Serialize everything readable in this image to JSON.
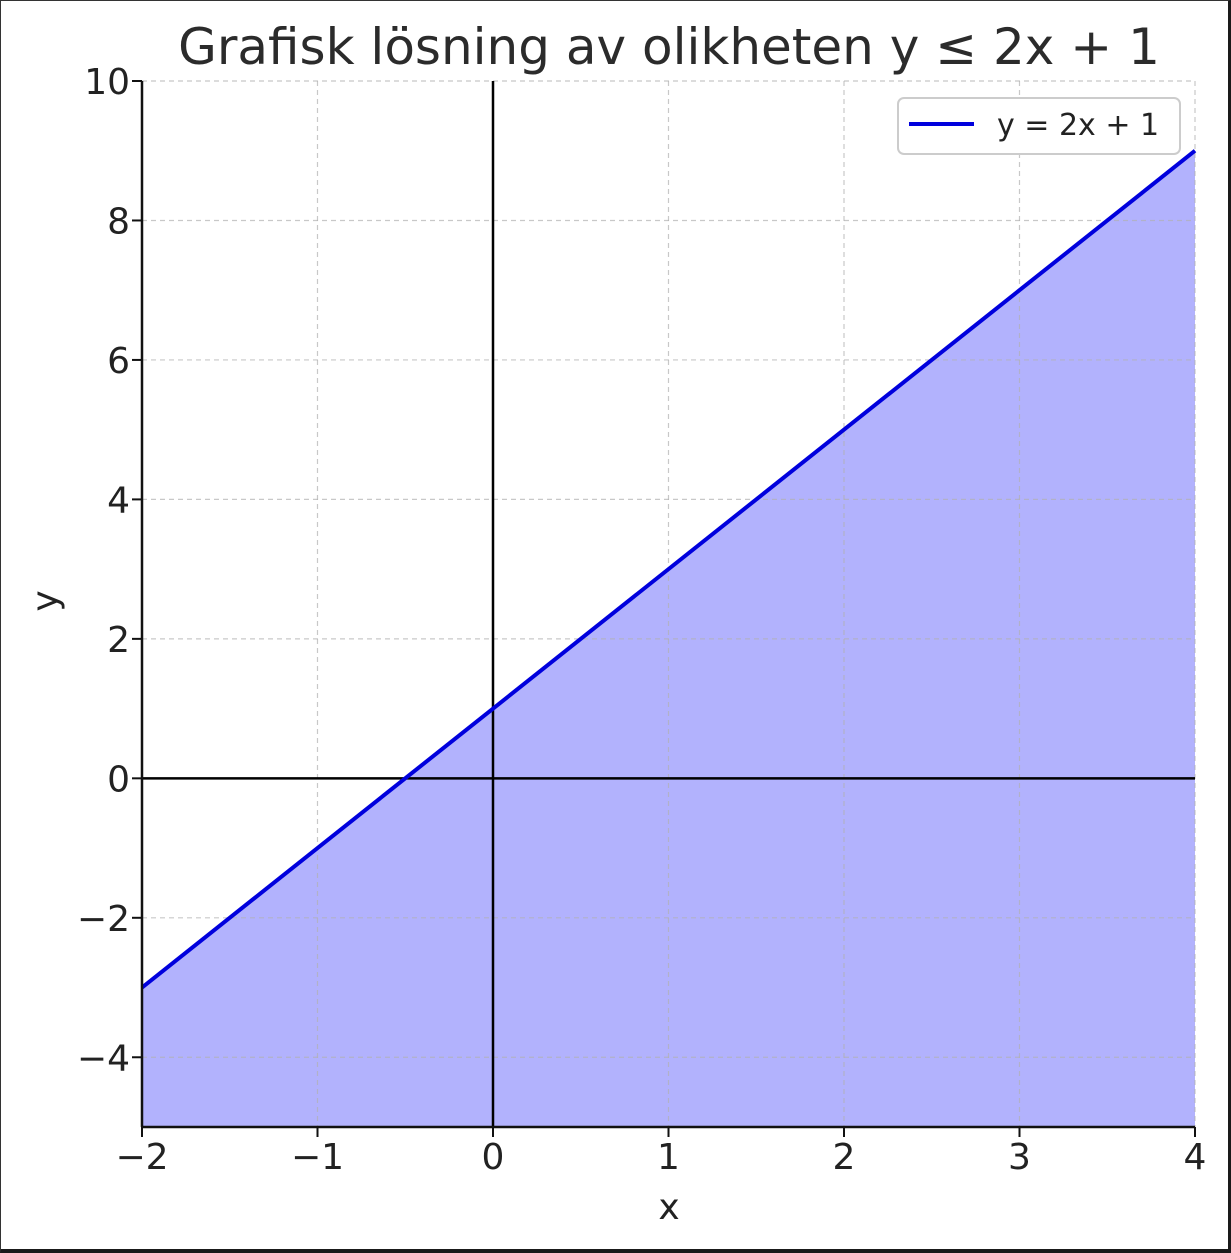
{
  "chart_data": {
    "type": "line",
    "title": "Grafisk lösning av olikheten y ≤ 2x + 1",
    "xlabel": "x",
    "ylabel": "y",
    "xlim": [
      -2,
      4
    ],
    "ylim": [
      -5,
      10
    ],
    "x_ticks": [
      -2,
      -1,
      0,
      1,
      2,
      3,
      4
    ],
    "x_tick_labels": [
      "−2",
      "−1",
      "0",
      "1",
      "2",
      "3",
      "4"
    ],
    "y_ticks": [
      -4,
      -2,
      0,
      2,
      4,
      6,
      8,
      10
    ],
    "y_tick_labels": [
      "−4",
      "−2",
      "0",
      "2",
      "4",
      "6",
      "8",
      "10"
    ],
    "grid": true,
    "legend_position": "top-right",
    "series": [
      {
        "name": "y = 2x + 1",
        "color": "#0000dd",
        "x": [
          -2,
          4
        ],
        "y": [
          -3,
          9
        ]
      }
    ],
    "fill_region": {
      "description_rule": "y <= 2x + 1",
      "color": "#b2b2fd",
      "x": [
        -2,
        4
      ],
      "y_upper": [
        -3,
        9
      ],
      "y_lower": [
        -5,
        -5
      ]
    },
    "reference_lines": {
      "x_axis_at": 0,
      "y_axis_at": 0,
      "color": "#000000"
    }
  }
}
